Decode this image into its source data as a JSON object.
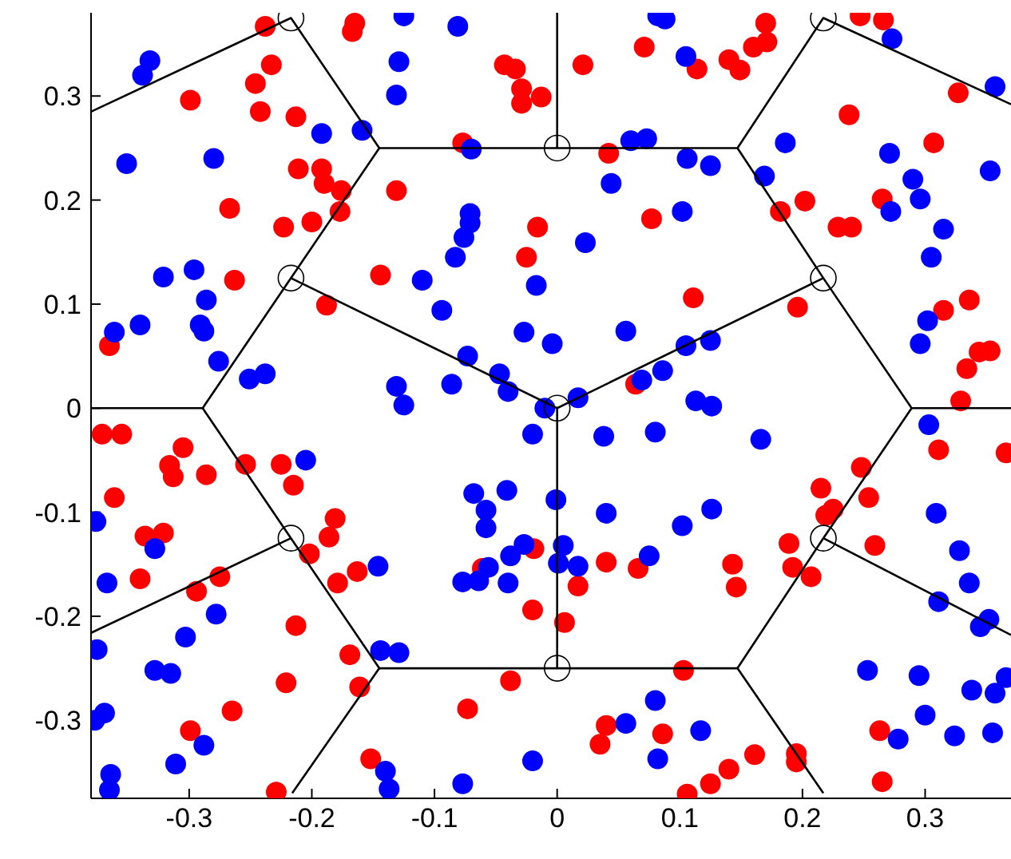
{
  "chart_data": {
    "type": "scatter",
    "xlim": [
      -0.38,
      0.37
    ],
    "ylim": [
      -0.375,
      0.38
    ],
    "xticks": [
      -0.3,
      -0.2,
      -0.1,
      0,
      0.1,
      0.2,
      0.3
    ],
    "yticks": [
      -0.3,
      -0.2,
      -0.1,
      0,
      0.1,
      0.2,
      0.3
    ],
    "marker": "circle",
    "series": [
      {
        "color": "#ff0000",
        "x": [
          -0.238,
          -0.165,
          -0.167,
          -0.233,
          -0.246,
          -0.299,
          -0.242,
          -0.213,
          -0.043,
          -0.034,
          -0.029,
          -0.029,
          -0.013,
          -0.077,
          -0.211,
          -0.192,
          -0.19,
          -0.176,
          -0.131,
          -0.267,
          -0.177,
          -0.223,
          -0.2,
          -0.016,
          -0.025,
          -0.144,
          -0.263,
          -0.188,
          -0.365,
          0.021,
          0.071,
          0.114,
          0.14,
          0.149,
          0.16,
          0.171,
          0.17,
          0.247,
          0.266,
          0.327,
          0.238,
          0.307,
          0.042,
          0.202,
          0.182,
          0.265,
          0.229,
          0.24,
          0.077,
          0.111,
          0.196,
          0.336,
          0.315,
          0.344,
          0.353,
          0.334,
          0.329,
          0.064,
          -0.371,
          -0.355,
          -0.305,
          -0.316,
          -0.313,
          -0.286,
          -0.254,
          -0.225,
          -0.215,
          -0.361,
          -0.336,
          -0.321,
          -0.34,
          -0.181,
          -0.186,
          -0.202,
          -0.163,
          -0.179,
          -0.275,
          -0.294,
          -0.213,
          -0.169,
          -0.221,
          -0.161,
          -0.265,
          -0.299,
          -0.152,
          -0.229,
          -0.061,
          -0.019,
          -0.02,
          -0.038,
          -0.073,
          0.311,
          0.366,
          0.248,
          0.215,
          0.254,
          0.225,
          0.219,
          0.259,
          0.189,
          0.192,
          0.207,
          0.04,
          0.066,
          0.017,
          0.143,
          0.146,
          0.006,
          0.103,
          0.04,
          0.035,
          0.086,
          0.161,
          0.14,
          0.125,
          0.106,
          0.195,
          0.195,
          0.263,
          0.265
        ],
        "values": [
          0.367,
          0.37,
          0.362,
          0.33,
          0.312,
          0.296,
          0.285,
          0.28,
          0.33,
          0.326,
          0.307,
          0.293,
          0.299,
          0.255,
          0.23,
          0.23,
          0.216,
          0.209,
          0.209,
          0.192,
          0.189,
          0.174,
          0.179,
          0.174,
          0.145,
          0.128,
          0.123,
          0.099,
          0.06,
          0.33,
          0.347,
          0.326,
          0.335,
          0.325,
          0.347,
          0.352,
          0.37,
          0.377,
          0.373,
          0.303,
          0.282,
          0.255,
          0.245,
          0.199,
          0.189,
          0.201,
          0.174,
          0.174,
          0.182,
          0.106,
          0.097,
          0.104,
          0.094,
          0.054,
          0.055,
          0.038,
          0.007,
          0.023,
          -0.025,
          -0.025,
          -0.038,
          -0.055,
          -0.066,
          -0.064,
          -0.054,
          -0.054,
          -0.074,
          -0.086,
          -0.123,
          -0.12,
          -0.164,
          -0.106,
          -0.124,
          -0.14,
          -0.157,
          -0.168,
          -0.162,
          -0.176,
          -0.209,
          -0.237,
          -0.264,
          -0.268,
          -0.291,
          -0.31,
          -0.337,
          -0.369,
          -0.154,
          -0.135,
          -0.194,
          -0.262,
          -0.289,
          -0.04,
          -0.043,
          -0.057,
          -0.077,
          -0.086,
          -0.097,
          -0.103,
          -0.132,
          -0.13,
          -0.153,
          -0.162,
          -0.148,
          -0.154,
          -0.171,
          -0.15,
          -0.172,
          -0.206,
          -0.252,
          -0.305,
          -0.323,
          -0.313,
          -0.333,
          -0.347,
          -0.361,
          -0.371,
          -0.332,
          -0.34,
          -0.31,
          -0.359
        ]
      },
      {
        "color": "#0000ff",
        "x": [
          -0.125,
          -0.081,
          -0.332,
          -0.338,
          -0.129,
          -0.131,
          -0.192,
          -0.159,
          -0.07,
          -0.351,
          -0.28,
          -0.071,
          -0.071,
          -0.076,
          -0.083,
          -0.11,
          -0.094,
          -0.017,
          -0.296,
          -0.321,
          -0.286,
          -0.291,
          -0.288,
          -0.34,
          -0.361,
          -0.276,
          -0.251,
          -0.238,
          -0.027,
          -0.004,
          -0.073,
          -0.131,
          -0.125,
          -0.086,
          -0.047,
          -0.04,
          -0.01,
          0.082,
          0.088,
          0.273,
          0.105,
          0.357,
          0.06,
          0.073,
          0.186,
          0.271,
          0.106,
          0.125,
          0.353,
          0.29,
          0.296,
          0.272,
          0.169,
          0.044,
          0.102,
          0.315,
          0.305,
          0.023,
          0.302,
          0.296,
          0.056,
          0.105,
          0.125,
          0.086,
          0.069,
          0.017,
          0.113,
          0.126,
          -0.02,
          -0.205,
          -0.068,
          -0.041,
          -0.058,
          -0.058,
          -0.001,
          -0.027,
          -0.038,
          -0.056,
          -0.064,
          -0.077,
          -0.04,
          -0.376,
          -0.328,
          -0.367,
          -0.278,
          -0.303,
          -0.375,
          -0.328,
          -0.315,
          -0.144,
          -0.129,
          -0.146,
          -0.369,
          -0.377,
          -0.288,
          -0.311,
          -0.364,
          -0.365,
          -0.14,
          -0.137,
          -0.077,
          -0.02,
          0.038,
          0.08,
          0.166,
          0.04,
          0.102,
          0.126,
          0.005,
          0.001,
          0.017,
          0.075,
          0.303,
          0.309,
          0.328,
          0.336,
          0.311,
          0.345,
          0.352,
          0.253,
          0.295,
          0.338,
          0.357,
          0.366,
          0.3,
          0.324,
          0.355,
          0.278,
          0.08,
          0.056,
          0.117,
          0.082
        ],
        "values": [
          0.377,
          0.367,
          0.334,
          0.32,
          0.333,
          0.301,
          0.264,
          0.267,
          0.249,
          0.235,
          0.24,
          0.187,
          0.178,
          0.164,
          0.145,
          0.123,
          0.094,
          0.118,
          0.133,
          0.126,
          0.104,
          0.08,
          0.074,
          0.08,
          0.073,
          0.045,
          0.028,
          0.033,
          0.073,
          0.062,
          0.05,
          0.021,
          0.003,
          0.023,
          0.033,
          0.016,
          0.0,
          0.377,
          0.374,
          0.355,
          0.338,
          0.309,
          0.257,
          0.259,
          0.255,
          0.245,
          0.24,
          0.233,
          0.228,
          0.22,
          0.201,
          0.189,
          0.223,
          0.216,
          0.189,
          0.172,
          0.145,
          0.159,
          0.084,
          0.062,
          0.074,
          0.06,
          0.065,
          0.036,
          0.027,
          0.01,
          0.007,
          0.002,
          -0.025,
          -0.05,
          -0.082,
          -0.079,
          -0.098,
          -0.115,
          -0.088,
          -0.131,
          -0.142,
          -0.153,
          -0.166,
          -0.167,
          -0.168,
          -0.109,
          -0.135,
          -0.168,
          -0.198,
          -0.22,
          -0.232,
          -0.252,
          -0.255,
          -0.233,
          -0.235,
          -0.152,
          -0.293,
          -0.3,
          -0.324,
          -0.342,
          -0.352,
          -0.367,
          -0.349,
          -0.366,
          -0.361,
          -0.339,
          -0.027,
          -0.023,
          -0.03,
          -0.101,
          -0.113,
          -0.097,
          -0.132,
          -0.149,
          -0.152,
          -0.142,
          -0.016,
          -0.101,
          -0.137,
          -0.168,
          -0.186,
          -0.21,
          -0.203,
          -0.252,
          -0.257,
          -0.271,
          -0.274,
          -0.259,
          -0.295,
          -0.315,
          -0.312,
          -0.318,
          -0.281,
          -0.303,
          -0.31,
          -0.337
        ]
      },
      {
        "color": "#000000",
        "x": [
          -0.217,
          0.217,
          -0.217,
          0.217,
          0,
          0,
          0,
          -0.217,
          0.217
        ],
        "values": [
          0.375,
          0.375,
          0.125,
          0.125,
          0.25,
          0,
          -0.25,
          -0.125,
          -0.125
        ]
      },
      {
        "type": "line",
        "marker": "none",
        "color": "#000000",
        "x": [
          -0.38,
          -0.217,
          -0.145,
          -0.217,
          -0.289,
          -0.38
        ],
        "values": [
          0.285,
          0.375,
          0.25,
          0.125,
          0,
          0
        ]
      },
      {
        "type": "line",
        "marker": "none",
        "color": "#000000",
        "x": [
          -0.145,
          0.147,
          0.217,
          0.37
        ],
        "values": [
          0.25,
          0.25,
          0.375,
          0.292
        ]
      },
      {
        "type": "line",
        "marker": "none",
        "color": "#000000",
        "x": [
          0.147,
          0.217,
          0.289,
          0.37
        ],
        "values": [
          0.25,
          0.125,
          0,
          0
        ]
      },
      {
        "type": "line",
        "marker": "none",
        "color": "#000000",
        "x": [
          0,
          0
        ],
        "values": [
          0.38,
          0.25
        ]
      },
      {
        "type": "line",
        "marker": "none",
        "color": "#000000",
        "x": [
          -0.217,
          0,
          0.217
        ],
        "values": [
          0.125,
          0,
          0.125
        ]
      },
      {
        "type": "line",
        "marker": "none",
        "color": "#000000",
        "x": [
          0,
          0
        ],
        "values": [
          0,
          -0.25
        ]
      },
      {
        "type": "line",
        "marker": "none",
        "color": "#000000",
        "x": [
          -0.289,
          -0.217,
          -0.145,
          -0.216
        ],
        "values": [
          0,
          -0.125,
          -0.25,
          -0.37
        ]
      },
      {
        "type": "line",
        "marker": "none",
        "color": "#000000",
        "x": [
          -0.38,
          -0.217
        ],
        "values": [
          -0.216,
          -0.125
        ]
      },
      {
        "type": "line",
        "marker": "none",
        "color": "#000000",
        "x": [
          -0.145,
          0.147,
          0.217
        ],
        "values": [
          -0.25,
          -0.25,
          -0.37
        ]
      },
      {
        "type": "line",
        "marker": "none",
        "color": "#000000",
        "x": [
          0.147,
          0.217,
          0.289
        ],
        "values": [
          -0.25,
          -0.125,
          0
        ]
      },
      {
        "type": "line",
        "marker": "none",
        "color": "#000000",
        "x": [
          0.217,
          0.37
        ],
        "values": [
          -0.125,
          -0.218
        ]
      }
    ]
  }
}
